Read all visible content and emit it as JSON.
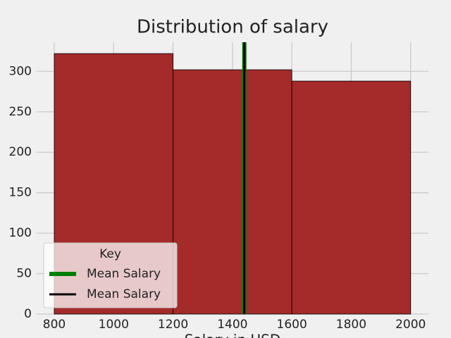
{
  "chart_data": {
    "type": "histogram",
    "title": "Distribution of salary",
    "x_label": "Salary in USD",
    "bins": [
      800,
      1200,
      1600,
      2000
    ],
    "counts": [
      322,
      302,
      288
    ],
    "color": "#a52a2a",
    "xlim": [
      740,
      2060
    ],
    "xticks": [
      800,
      1000,
      1200,
      1400,
      1600,
      1800,
      2000
    ],
    "ylim": [
      0,
      336
    ],
    "yticks": [
      0,
      50,
      100,
      150,
      200,
      250,
      300
    ],
    "grid": true,
    "mean_lines": [
      {
        "name": "Mean Salary",
        "color": "green",
        "x": 1440
      },
      {
        "name": "Mean Salary",
        "color": "black",
        "x": 1440
      }
    ],
    "legend": {
      "title": "Key",
      "corner": "lower left"
    }
  }
}
